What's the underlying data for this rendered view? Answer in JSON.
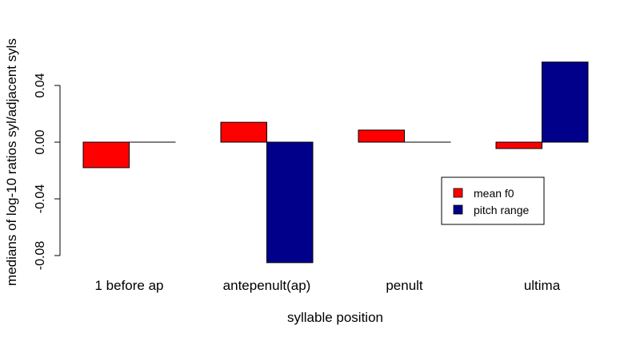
{
  "chart_data": {
    "type": "bar",
    "xlabel": "syllable position",
    "ylabel": "medians of log-10 ratios syl/adjacent syls",
    "categories": [
      "1 before ap",
      "antepenult(ap)",
      "penult",
      "ultima"
    ],
    "series": [
      {
        "name": "mean f0",
        "color": "#ff0000",
        "values": [
          -0.018,
          0.014,
          0.0085,
          -0.0045
        ]
      },
      {
        "name": "pitch range",
        "color": "#00008b",
        "values": [
          0.0,
          -0.085,
          0.0,
          0.0565
        ]
      }
    ],
    "y_ticks": [
      -0.08,
      -0.04,
      0.0,
      0.04
    ],
    "y_tick_labels": [
      "-0.08",
      "-0.04",
      "0.00",
      "0.04"
    ],
    "ylim": [
      -0.085,
      0.0565
    ],
    "grid": false,
    "legend_position": "right"
  }
}
